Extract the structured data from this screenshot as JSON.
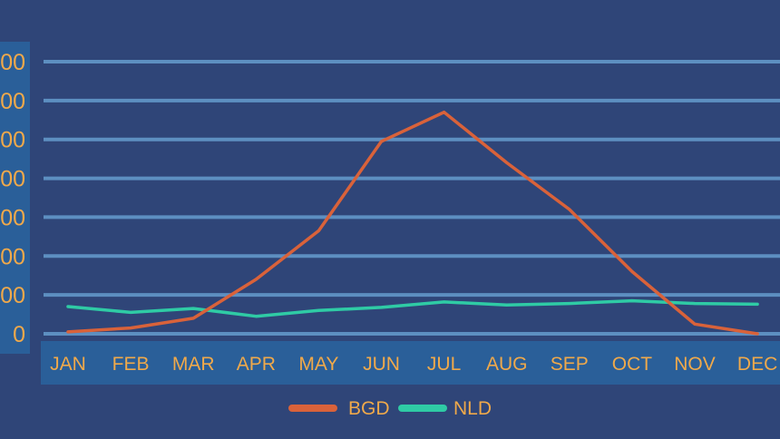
{
  "chart_data": {
    "type": "line",
    "categories": [
      "JAN",
      "FEB",
      "MAR",
      "APR",
      "MAY",
      "JUN",
      "JUL",
      "AUG",
      "SEP",
      "OCT",
      "NOV",
      "DEC"
    ],
    "y_tick_labels": [
      "00",
      "00",
      "00",
      "00",
      "00",
      "00",
      "00",
      "0"
    ],
    "ylim": [
      0,
      7
    ],
    "grid": true,
    "legend_position": "bottom-center",
    "series": [
      {
        "name": "BGD",
        "color": "#d9623a",
        "values": [
          0.05,
          0.15,
          0.4,
          1.4,
          2.65,
          4.95,
          5.7,
          4.4,
          3.2,
          1.6,
          0.25,
          0.0
        ]
      },
      {
        "name": "NLD",
        "color": "#2fcba5",
        "values": [
          0.7,
          0.55,
          0.65,
          0.45,
          0.6,
          0.68,
          0.82,
          0.74,
          0.78,
          0.85,
          0.78,
          0.76
        ]
      }
    ]
  },
  "legend": [
    {
      "label": "BGD",
      "color": "#d9623a",
      "text_color": "#f0a94a"
    },
    {
      "label": "NLD",
      "color": "#2fcba5",
      "text_color": "#f0a94a"
    }
  ],
  "colors": {
    "background": "#2f4578",
    "axis_band": "#2a5f99",
    "gridline": "#5d8fc1",
    "tick_text": "#f0a94a"
  }
}
